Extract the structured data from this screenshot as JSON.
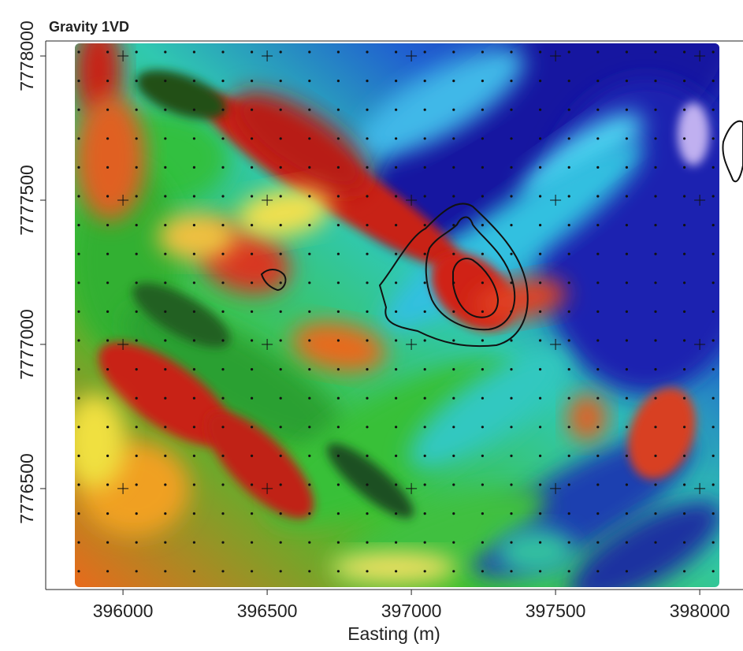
{
  "chart_data": {
    "type": "map",
    "title": "Gravity 1VD",
    "x_label": "Easting (m)",
    "xlim": [
      395732,
      398150
    ],
    "xticks": [
      396000,
      396500,
      397000,
      397500,
      398000
    ],
    "ylim": [
      7776150,
      7778052
    ],
    "yticks": [
      7776500,
      7777000,
      7777500,
      7778000
    ]
  }
}
